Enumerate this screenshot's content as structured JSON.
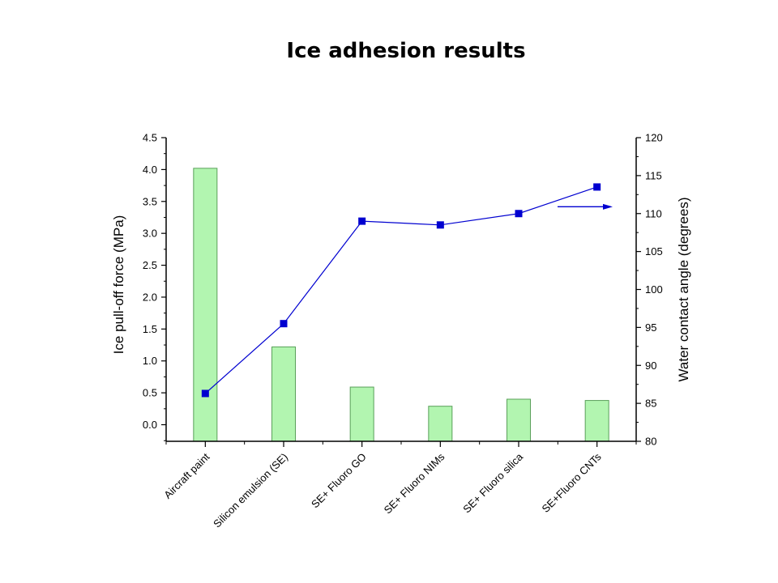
{
  "chart_data": {
    "title": "Ice adhesion results",
    "categories": [
      "Aircraft paint",
      "Silicon emulsion (SE)",
      "SE+ Fluoro GO",
      "SE+ Fluoro NIMs",
      "SE+ Fluoro silica",
      "SE+Fluoro CNTs"
    ],
    "series": [
      {
        "type": "bar",
        "axis": "left",
        "values": [
          4.02,
          1.22,
          0.59,
          0.29,
          0.4,
          0.38
        ],
        "color": "#b2f5b0",
        "edge_color": "#5aa05a"
      },
      {
        "type": "line",
        "axis": "right",
        "values": [
          86.3,
          95.5,
          109.0,
          108.5,
          110.0,
          113.5
        ],
        "color": "#0000d0"
      }
    ],
    "left_axis": {
      "label": "Ice pull-off force (MPa)",
      "range": [
        -0.26,
        4.5
      ],
      "ticks": [
        "0.0",
        "0.5",
        "1.0",
        "1.5",
        "2.0",
        "2.5",
        "3.0",
        "3.5",
        "4.0",
        "4.5"
      ]
    },
    "right_axis": {
      "label": "Water contact angle (degrees)",
      "range": [
        80,
        120
      ],
      "ticks": [
        "80",
        "85",
        "90",
        "95",
        "100",
        "105",
        "110",
        "115",
        "120"
      ]
    },
    "grid": false,
    "series_indicator": "right-arrow"
  }
}
